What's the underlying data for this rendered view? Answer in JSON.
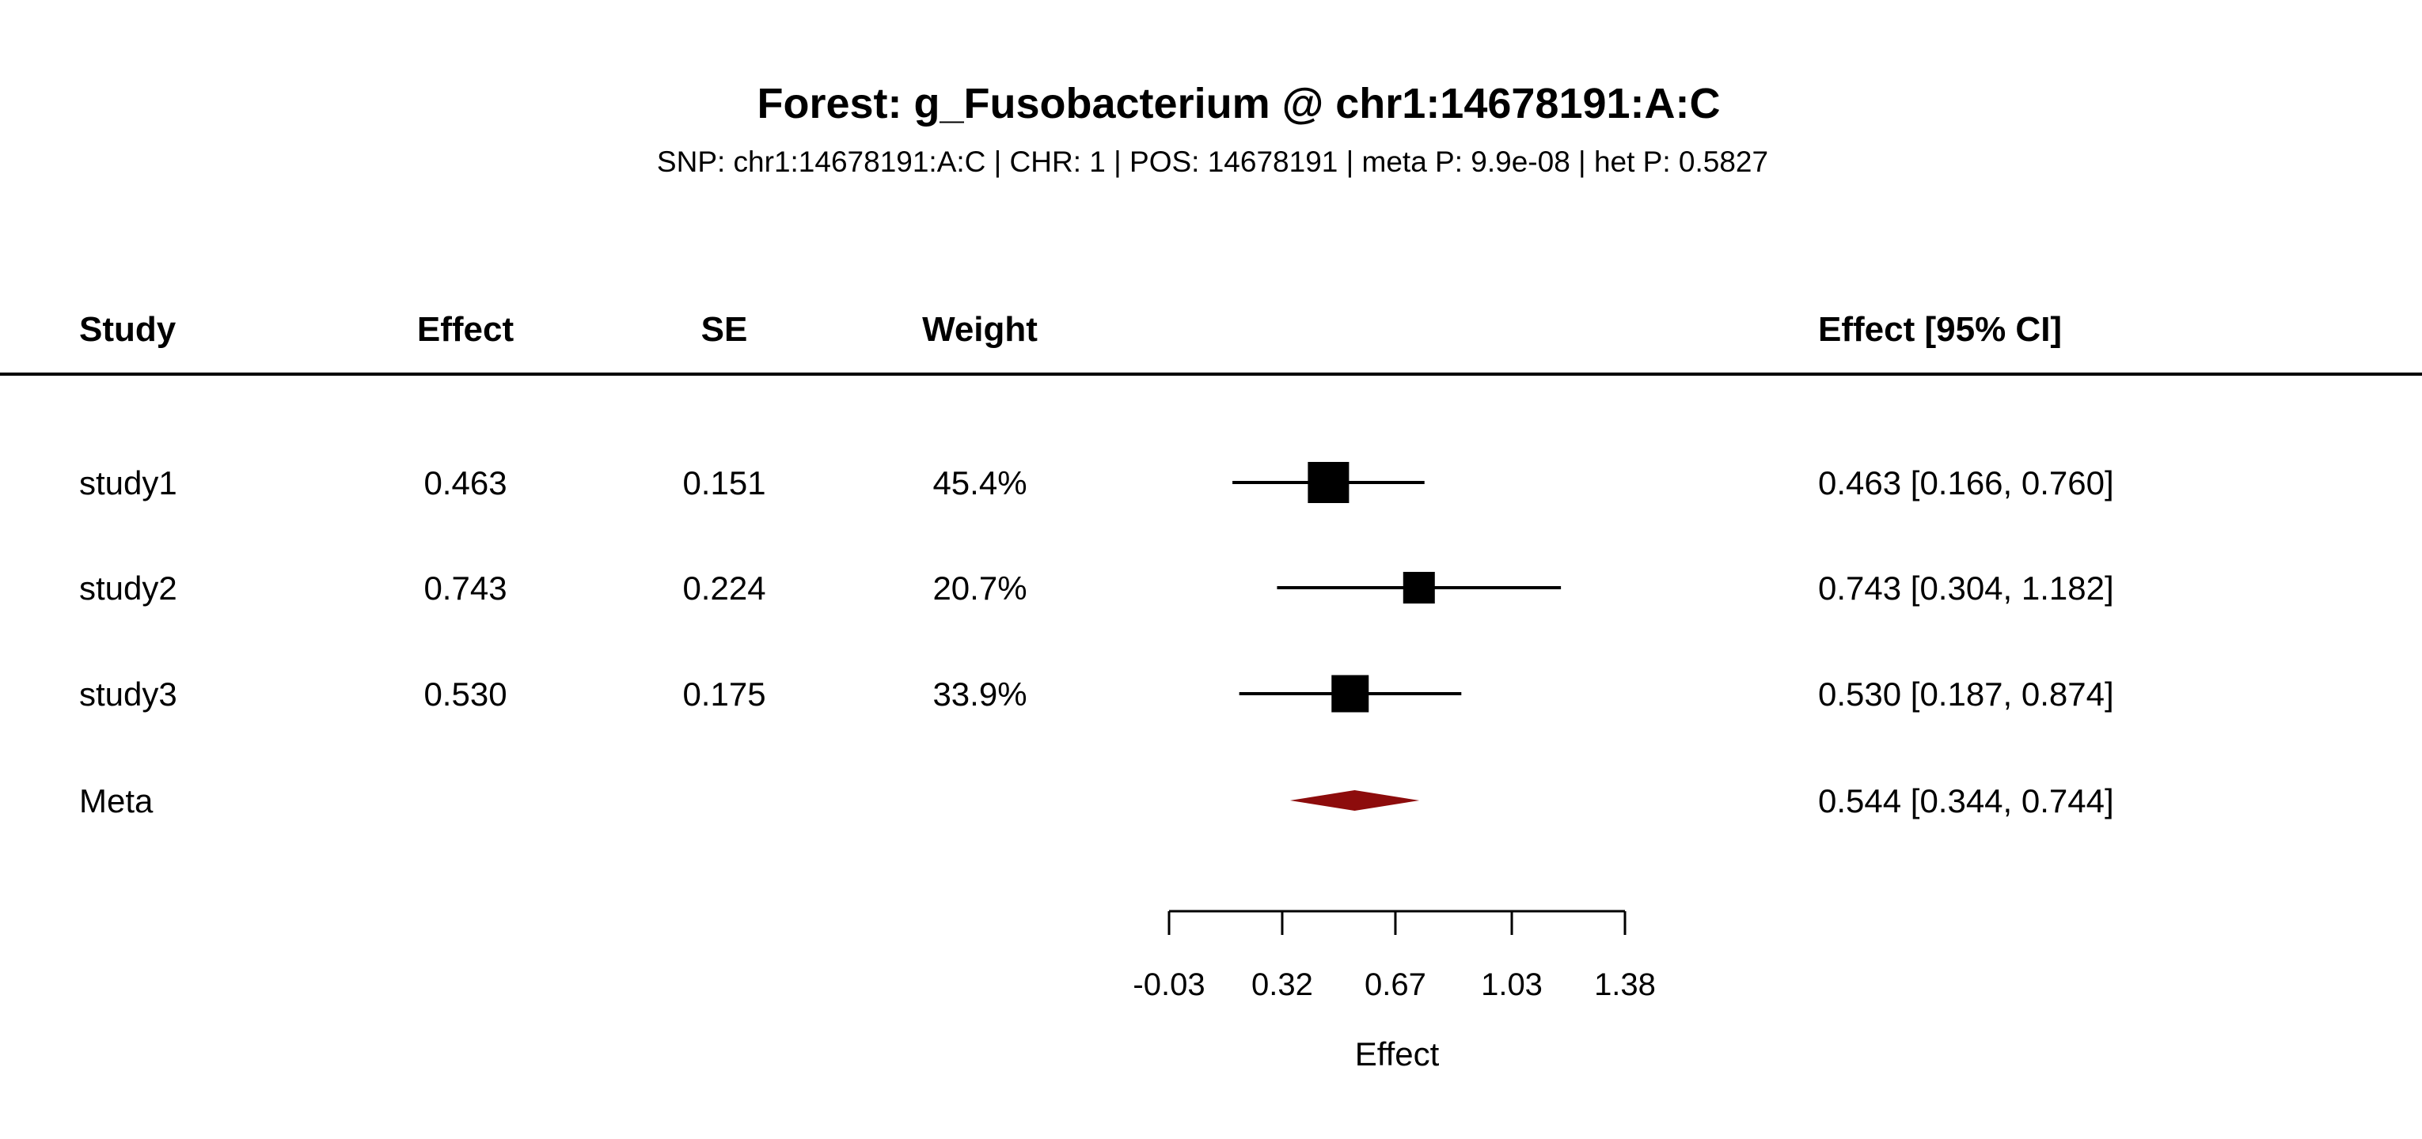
{
  "title": "Forest: g_Fusobacterium @ chr1:14678191:A:C",
  "subtitle": "SNP: chr1:14678191:A:C | CHR: 1 | POS: 14678191 | meta P: 9.9e-08 | het P: 0.5827",
  "columns": {
    "study": "Study",
    "effect": "Effect",
    "se": "SE",
    "weight": "Weight",
    "ci": "Effect [95% CI]"
  },
  "chart_data": {
    "type": "forest",
    "xlabel": "Effect",
    "studies": [
      {
        "study": "study1",
        "effect": 0.463,
        "se": 0.151,
        "weight_pct": 45.4,
        "effect_label": "0.463",
        "se_label": "0.151",
        "weight_label": "45.4%",
        "ci_low": 0.166,
        "ci_high": 0.76,
        "ci_label": "0.463 [0.166, 0.760]"
      },
      {
        "study": "study2",
        "effect": 0.743,
        "se": 0.224,
        "weight_pct": 20.7,
        "effect_label": "0.743",
        "se_label": "0.224",
        "weight_label": "20.7%",
        "ci_low": 0.304,
        "ci_high": 1.182,
        "ci_label": "0.743 [0.304, 1.182]"
      },
      {
        "study": "study3",
        "effect": 0.53,
        "se": 0.175,
        "weight_pct": 33.9,
        "effect_label": "0.530",
        "se_label": "0.175",
        "weight_label": "33.9%",
        "ci_low": 0.187,
        "ci_high": 0.874,
        "ci_label": "0.530 [0.187, 0.874]"
      }
    ],
    "meta": {
      "study": "Meta",
      "effect": 0.544,
      "ci_low": 0.344,
      "ci_high": 0.744,
      "ci_label": "0.544 [0.344, 0.744]"
    },
    "xaxis": {
      "min": -0.03,
      "max": 1.38,
      "ticks": [
        -0.03,
        0.32,
        0.67,
        1.03,
        1.38
      ],
      "tick_labels": [
        "-0.03",
        "0.32",
        "0.67",
        "1.03",
        "1.38"
      ],
      "label": "Effect"
    },
    "colors": {
      "marker": "#000000",
      "diamond": "#8d0c0c"
    }
  }
}
